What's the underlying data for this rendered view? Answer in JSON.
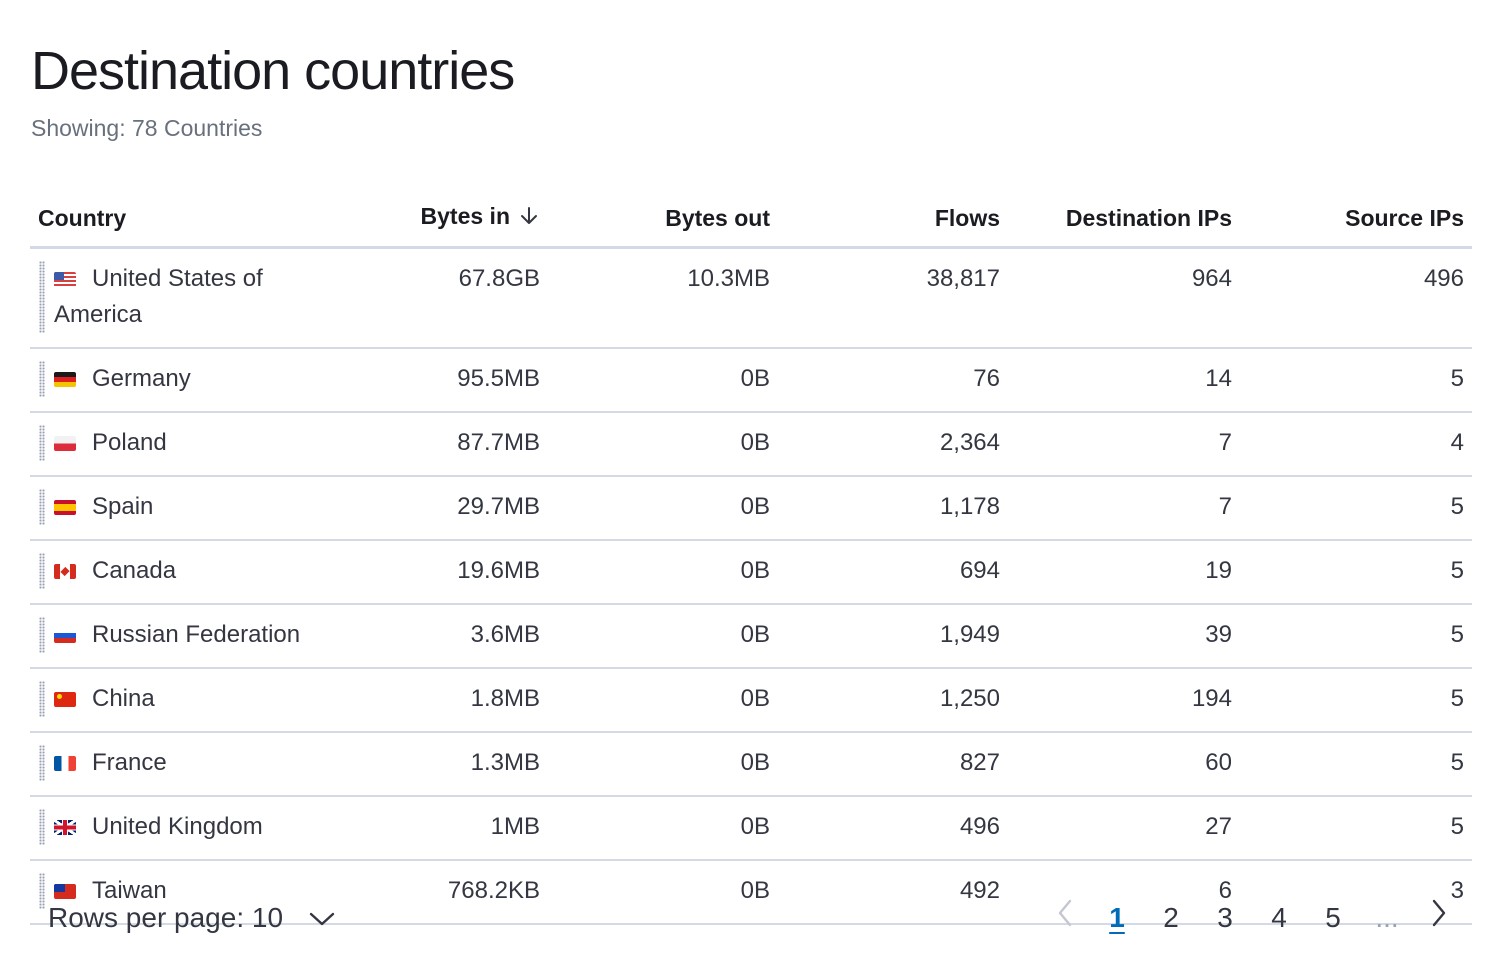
{
  "title": "Destination countries",
  "subtitle": "Showing: 78 Countries",
  "columns": {
    "country": "Country",
    "bytes_in": "Bytes in",
    "bytes_out": "Bytes out",
    "flows": "Flows",
    "dest_ips": "Destination IPs",
    "source_ips": "Source IPs"
  },
  "rows": [
    {
      "flag": "us-flag-icon",
      "country": "United States of America",
      "bytes_in": "67.8GB",
      "bytes_out": "10.3MB",
      "flows": "38,817",
      "dest_ips": "964",
      "source_ips": "496"
    },
    {
      "flag": "de-flag-icon",
      "country": "Germany",
      "bytes_in": "95.5MB",
      "bytes_out": "0B",
      "flows": "76",
      "dest_ips": "14",
      "source_ips": "5"
    },
    {
      "flag": "pl-flag-icon",
      "country": "Poland",
      "bytes_in": "87.7MB",
      "bytes_out": "0B",
      "flows": "2,364",
      "dest_ips": "7",
      "source_ips": "4"
    },
    {
      "flag": "es-flag-icon",
      "country": "Spain",
      "bytes_in": "29.7MB",
      "bytes_out": "0B",
      "flows": "1,178",
      "dest_ips": "7",
      "source_ips": "5"
    },
    {
      "flag": "ca-flag-icon",
      "country": "Canada",
      "bytes_in": "19.6MB",
      "bytes_out": "0B",
      "flows": "694",
      "dest_ips": "19",
      "source_ips": "5"
    },
    {
      "flag": "ru-flag-icon",
      "country": "Russian Federation",
      "bytes_in": "3.6MB",
      "bytes_out": "0B",
      "flows": "1,949",
      "dest_ips": "39",
      "source_ips": "5"
    },
    {
      "flag": "cn-flag-icon",
      "country": "China",
      "bytes_in": "1.8MB",
      "bytes_out": "0B",
      "flows": "1,250",
      "dest_ips": "194",
      "source_ips": "5"
    },
    {
      "flag": "fr-flag-icon",
      "country": "France",
      "bytes_in": "1.3MB",
      "bytes_out": "0B",
      "flows": "827",
      "dest_ips": "60",
      "source_ips": "5"
    },
    {
      "flag": "gb-flag-icon",
      "country": "United Kingdom",
      "bytes_in": "1MB",
      "bytes_out": "0B",
      "flows": "496",
      "dest_ips": "27",
      "source_ips": "5"
    },
    {
      "flag": "tw-flag-icon",
      "country": "Taiwan",
      "bytes_in": "768.2KB",
      "bytes_out": "0B",
      "flows": "492",
      "dest_ips": "6",
      "source_ips": "3"
    }
  ],
  "footer": {
    "rows_per_page_label": "Rows per page: 10",
    "pages": [
      "1",
      "2",
      "3",
      "4",
      "5"
    ],
    "ellipsis": "...",
    "active_page": "1"
  },
  "colors": {
    "accent": "#006bb8",
    "border": "#d3dae6",
    "text": "#343741",
    "subdued": "#69707d"
  }
}
